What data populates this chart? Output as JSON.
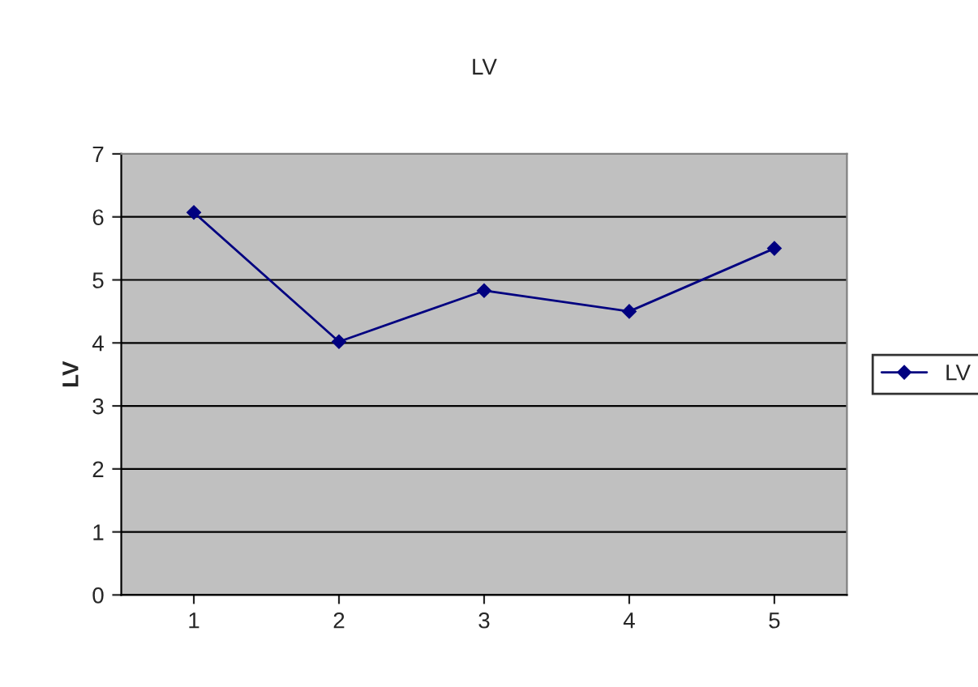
{
  "chart_data": {
    "type": "line",
    "title": "LV",
    "ylabel": "LV",
    "categories": [
      "1",
      "2",
      "3",
      "4",
      "5"
    ],
    "series": [
      {
        "name": "LV",
        "color": "#000080",
        "values": [
          6.07,
          4.02,
          4.83,
          4.5,
          5.5
        ]
      }
    ],
    "ylim": [
      0,
      7
    ],
    "yticks": [
      0,
      1,
      2,
      3,
      4,
      5,
      6,
      7
    ],
    "grid": "y",
    "legend": "right",
    "marker": "diamond",
    "line_style": "solid"
  }
}
